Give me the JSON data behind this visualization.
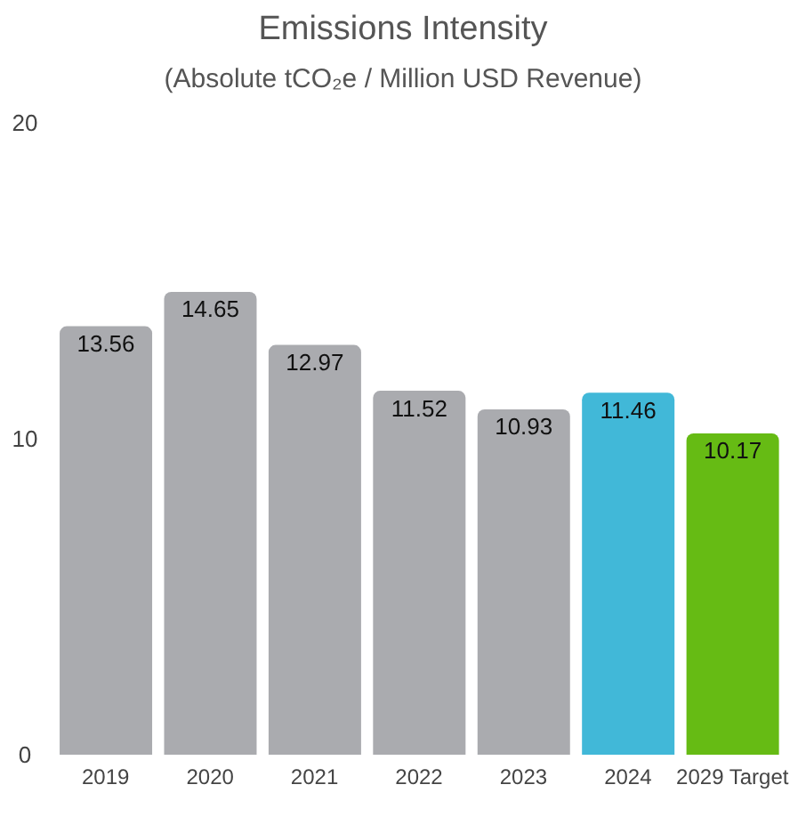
{
  "chart_data": {
    "type": "bar",
    "title": "Emissions Intensity",
    "subtitle": "(Absolute tCO₂e / Million USD Revenue)",
    "categories": [
      "2019",
      "2020",
      "2021",
      "2022",
      "2023",
      "2024",
      "2029 Target"
    ],
    "values": [
      13.56,
      14.65,
      12.97,
      11.52,
      10.93,
      11.46,
      10.17
    ],
    "colors": [
      "#aaabaf",
      "#aaabaf",
      "#aaabaf",
      "#aaabaf",
      "#aaabaf",
      "#41b8d8",
      "#66bb14"
    ],
    "ylim": [
      0,
      20
    ],
    "yticks": [
      0,
      10,
      20
    ],
    "grid": false,
    "data_labels": true
  }
}
